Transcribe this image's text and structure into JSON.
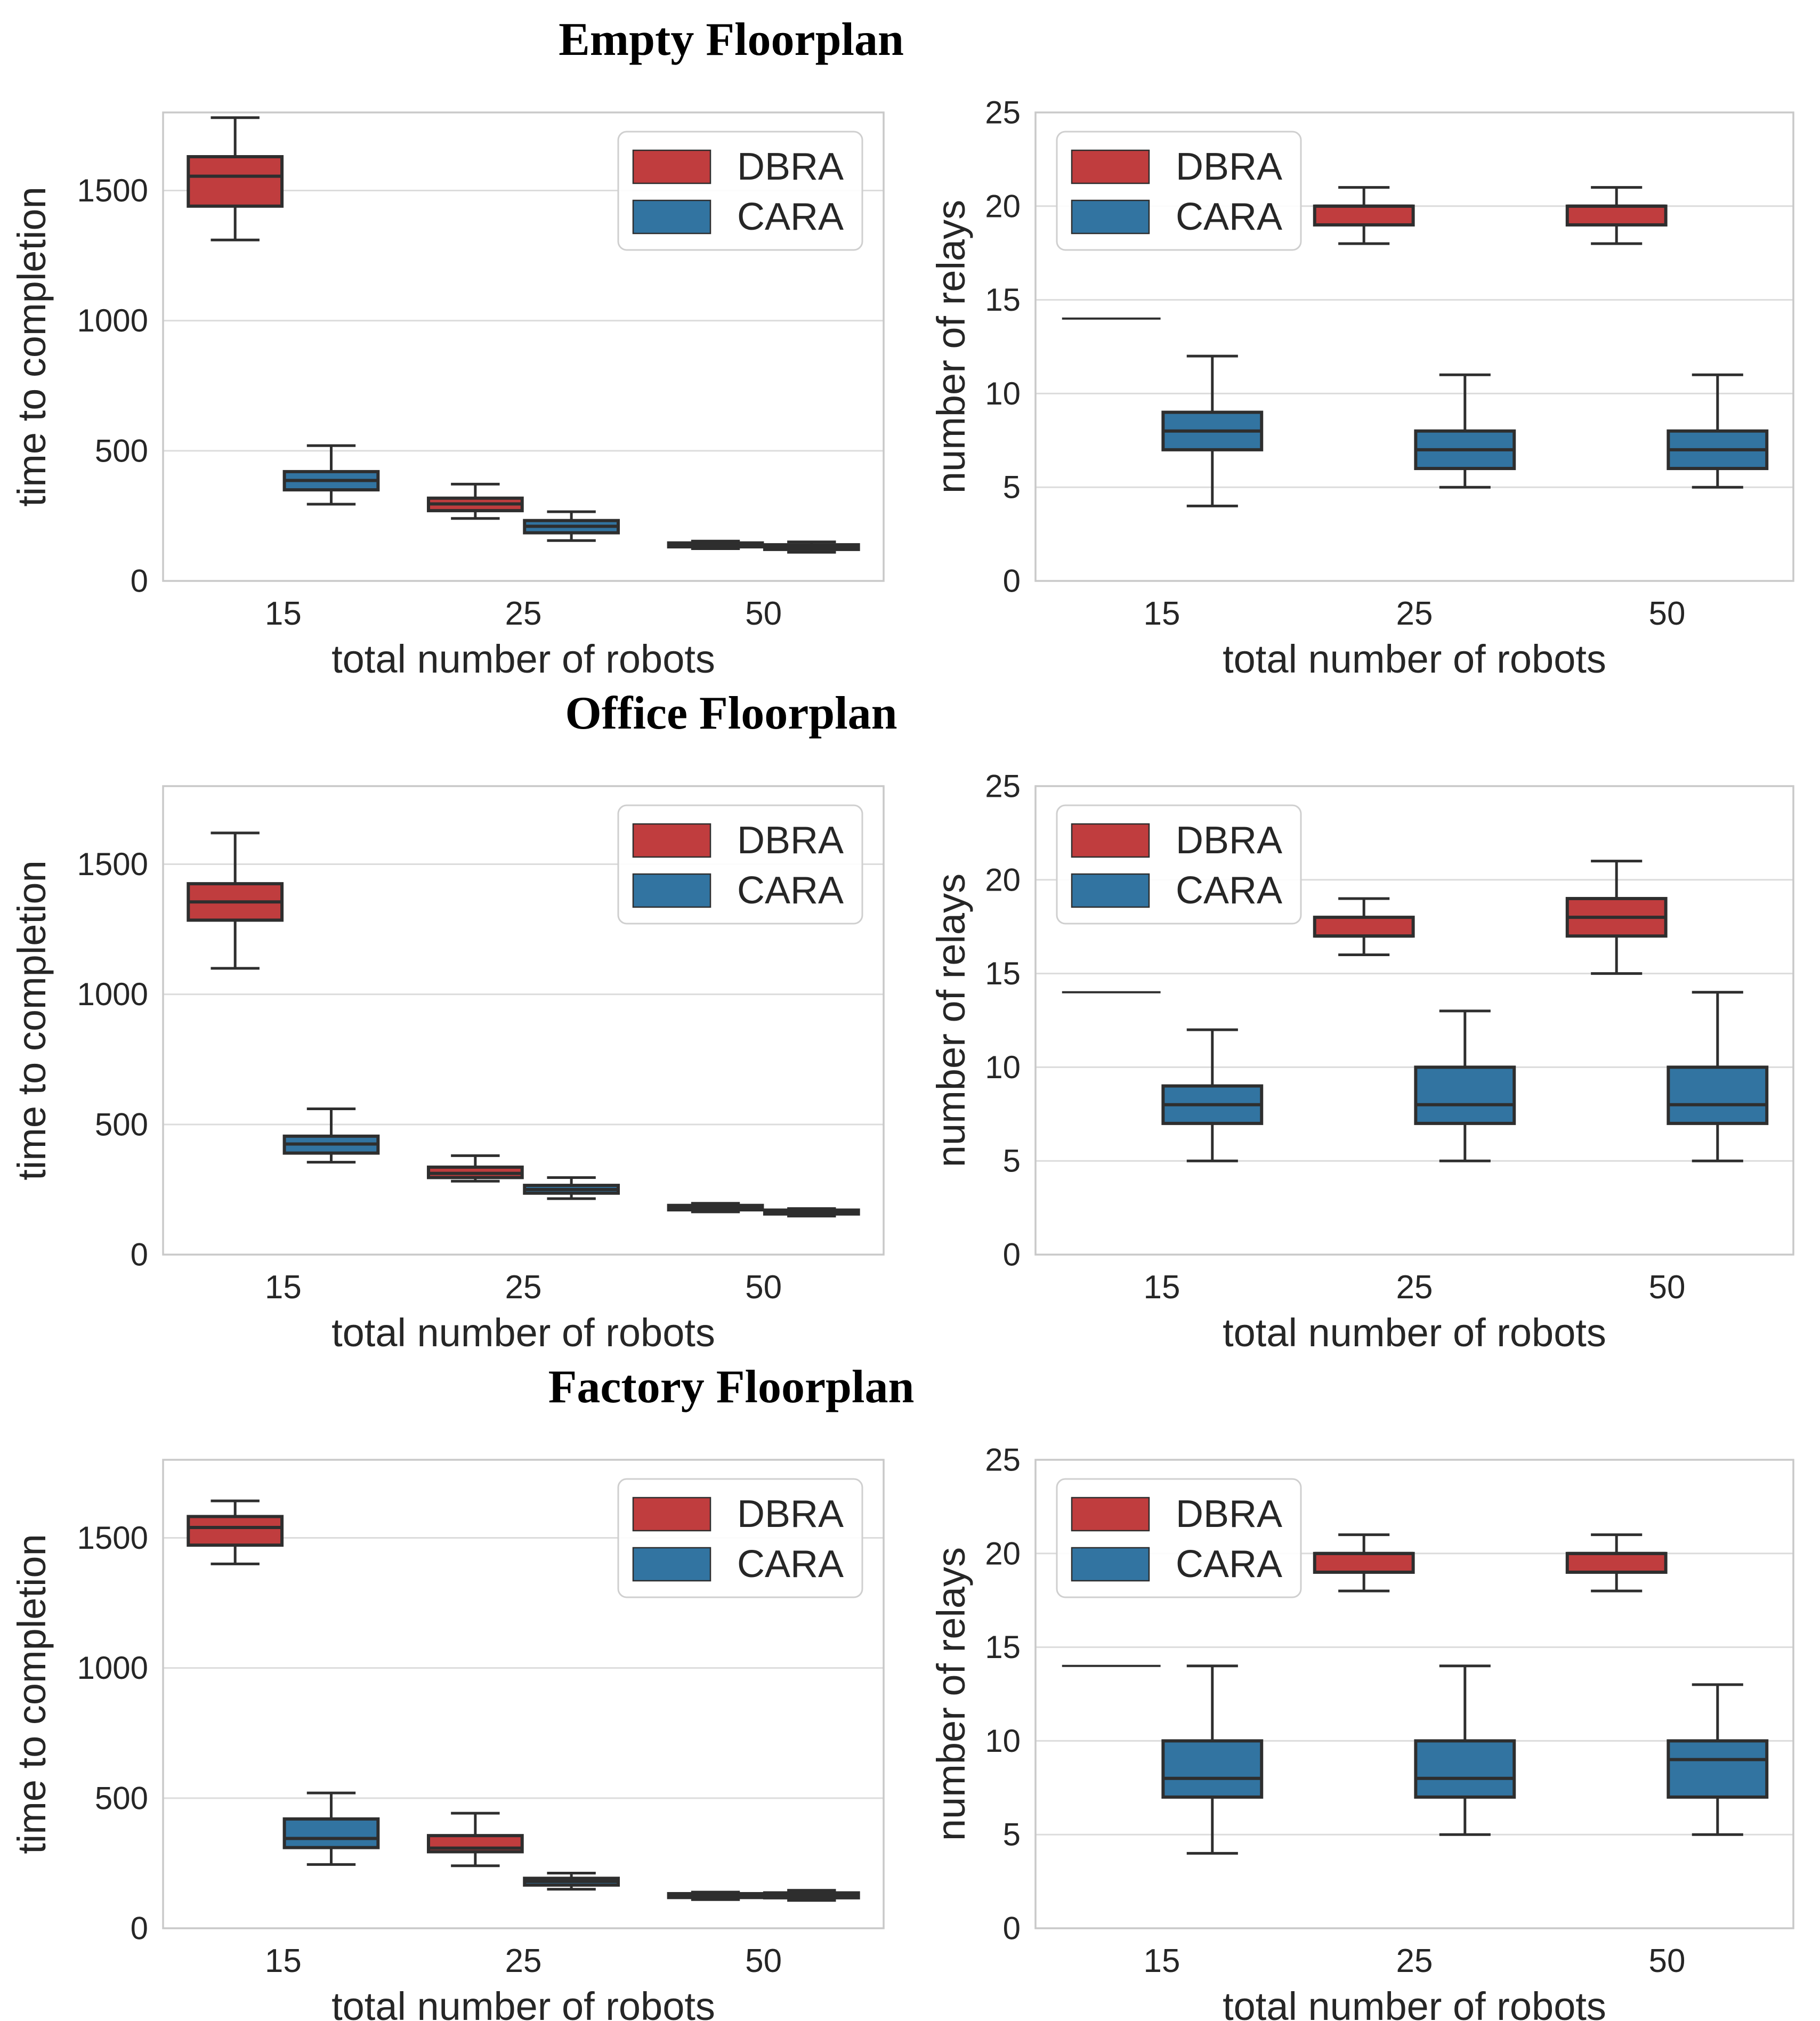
{
  "page": {
    "background": "#ffffff"
  },
  "palette": {
    "dbra": "#c03d3e",
    "cara": "#3274a1",
    "box_edge": "#2e2e2e",
    "grid": "#dcdcdc",
    "spine": "#c9c9c9",
    "text": "#262626",
    "legend_border": "#cfcfcf",
    "title_color": "#000000"
  },
  "legend": {
    "items": [
      {
        "label": "DBRA",
        "color": "#c03d3e"
      },
      {
        "label": "CARA",
        "color": "#3274a1"
      }
    ]
  },
  "rows": [
    {
      "title": "Empty Floorplan",
      "charts": [
        "empty-time",
        "empty-relays"
      ]
    },
    {
      "title": "Office Floorplan",
      "charts": [
        "office-time",
        "office-relays"
      ]
    },
    {
      "title": "Factory Floorplan",
      "charts": [
        "factory-time",
        "factory-relays"
      ]
    }
  ],
  "chart_data": [
    {
      "id": "empty-time",
      "panel": "Empty Floorplan",
      "type": "box",
      "xlabel": "total number of robots",
      "ylabel": "time to completion",
      "categories": [
        "15",
        "25",
        "50"
      ],
      "yticks": [
        0,
        500,
        1000,
        1500
      ],
      "ylim": [
        0,
        1800
      ],
      "grid": true,
      "legend_position": "top-right",
      "series": [
        {
          "name": "DBRA",
          "color": "#c03d3e",
          "boxes": [
            {
              "whislo": 1310,
              "q1": 1440,
              "med": 1555,
              "q3": 1630,
              "whishi": 1780
            },
            {
              "whislo": 240,
              "q1": 270,
              "med": 296,
              "q3": 318,
              "whishi": 372
            },
            {
              "whislo": 124,
              "q1": 131,
              "med": 138,
              "q3": 146,
              "whishi": 153
            }
          ]
        },
        {
          "name": "CARA",
          "color": "#3274a1",
          "boxes": [
            {
              "whislo": 295,
              "q1": 350,
              "med": 386,
              "q3": 420,
              "whishi": 520
            },
            {
              "whislo": 155,
              "q1": 185,
              "med": 210,
              "q3": 232,
              "whishi": 266
            },
            {
              "whislo": 110,
              "q1": 121,
              "med": 129,
              "q3": 139,
              "whishi": 150
            }
          ]
        }
      ]
    },
    {
      "id": "empty-relays",
      "panel": "Empty Floorplan",
      "type": "box",
      "xlabel": "total number of robots",
      "ylabel": "number of relays",
      "categories": [
        "15",
        "25",
        "50"
      ],
      "yticks": [
        0,
        5,
        10,
        15,
        20,
        25
      ],
      "ylim": [
        0,
        25
      ],
      "grid": true,
      "legend_position": "top-left",
      "series": [
        {
          "name": "DBRA",
          "color": "#c03d3e",
          "boxes": [
            {
              "whislo": 14,
              "q1": 14,
              "med": 14,
              "q3": 14,
              "whishi": 14
            },
            {
              "whislo": 18,
              "q1": 19,
              "med": 20,
              "q3": 20,
              "whishi": 21
            },
            {
              "whislo": 18,
              "q1": 19,
              "med": 20,
              "q3": 20,
              "whishi": 21
            }
          ]
        },
        {
          "name": "CARA",
          "color": "#3274a1",
          "boxes": [
            {
              "whislo": 4,
              "q1": 7,
              "med": 8,
              "q3": 9,
              "whishi": 12
            },
            {
              "whislo": 5,
              "q1": 6,
              "med": 7,
              "q3": 8,
              "whishi": 11
            },
            {
              "whislo": 5,
              "q1": 6,
              "med": 7,
              "q3": 8,
              "whishi": 11
            }
          ]
        }
      ]
    },
    {
      "id": "office-time",
      "panel": "Office Floorplan",
      "type": "box",
      "xlabel": "total number of robots",
      "ylabel": "time to completion",
      "categories": [
        "15",
        "25",
        "50"
      ],
      "yticks": [
        0,
        500,
        1000,
        1500
      ],
      "ylim": [
        0,
        1800
      ],
      "grid": true,
      "legend_position": "top-right",
      "series": [
        {
          "name": "DBRA",
          "color": "#c03d3e",
          "boxes": [
            {
              "whislo": 1100,
              "q1": 1285,
              "med": 1355,
              "q3": 1425,
              "whishi": 1620
            },
            {
              "whislo": 282,
              "q1": 296,
              "med": 312,
              "q3": 336,
              "whishi": 380
            },
            {
              "whislo": 164,
              "q1": 172,
              "med": 180,
              "q3": 189,
              "whishi": 197
            }
          ]
        },
        {
          "name": "CARA",
          "color": "#3274a1",
          "boxes": [
            {
              "whislo": 355,
              "q1": 390,
              "med": 425,
              "q3": 455,
              "whishi": 560
            },
            {
              "whislo": 215,
              "q1": 236,
              "med": 250,
              "q3": 266,
              "whishi": 296
            },
            {
              "whislo": 148,
              "q1": 156,
              "med": 163,
              "q3": 171,
              "whishi": 177
            }
          ]
        }
      ]
    },
    {
      "id": "office-relays",
      "panel": "Office Floorplan",
      "type": "box",
      "xlabel": "total number of robots",
      "ylabel": "number of relays",
      "categories": [
        "15",
        "25",
        "50"
      ],
      "yticks": [
        0,
        5,
        10,
        15,
        20,
        25
      ],
      "ylim": [
        0,
        25
      ],
      "grid": true,
      "legend_position": "top-left",
      "series": [
        {
          "name": "DBRA",
          "color": "#c03d3e",
          "boxes": [
            {
              "whislo": 14,
              "q1": 14,
              "med": 14,
              "q3": 14,
              "whishi": 14
            },
            {
              "whislo": 16,
              "q1": 17,
              "med": 17,
              "q3": 18,
              "whishi": 19
            },
            {
              "whislo": 15,
              "q1": 17,
              "med": 18,
              "q3": 19,
              "whishi": 21
            }
          ]
        },
        {
          "name": "CARA",
          "color": "#3274a1",
          "boxes": [
            {
              "whislo": 5,
              "q1": 7,
              "med": 8,
              "q3": 9,
              "whishi": 12
            },
            {
              "whislo": 5,
              "q1": 7,
              "med": 8,
              "q3": 10,
              "whishi": 13
            },
            {
              "whislo": 5,
              "q1": 7,
              "med": 8,
              "q3": 10,
              "whishi": 14
            }
          ]
        }
      ]
    },
    {
      "id": "factory-time",
      "panel": "Factory Floorplan",
      "type": "box",
      "xlabel": "total number of robots",
      "ylabel": "time to completion",
      "categories": [
        "15",
        "25",
        "50"
      ],
      "yticks": [
        0,
        500,
        1000,
        1500
      ],
      "ylim": [
        0,
        1800
      ],
      "grid": true,
      "legend_position": "top-right",
      "series": [
        {
          "name": "DBRA",
          "color": "#c03d3e",
          "boxes": [
            {
              "whislo": 1400,
              "q1": 1472,
              "med": 1540,
              "q3": 1582,
              "whishi": 1642
            },
            {
              "whislo": 240,
              "q1": 294,
              "med": 308,
              "q3": 356,
              "whishi": 442
            },
            {
              "whislo": 110,
              "q1": 118,
              "med": 125,
              "q3": 133,
              "whishi": 139
            }
          ]
        },
        {
          "name": "CARA",
          "color": "#3274a1",
          "boxes": [
            {
              "whislo": 245,
              "q1": 310,
              "med": 345,
              "q3": 420,
              "whishi": 520
            },
            {
              "whislo": 150,
              "q1": 166,
              "med": 180,
              "q3": 192,
              "whishi": 212
            },
            {
              "whislo": 107,
              "q1": 117,
              "med": 126,
              "q3": 136,
              "whishi": 146
            }
          ]
        }
      ]
    },
    {
      "id": "factory-relays",
      "panel": "Factory Floorplan",
      "type": "box",
      "xlabel": "total number of robots",
      "ylabel": "number of relays",
      "categories": [
        "15",
        "25",
        "50"
      ],
      "yticks": [
        0,
        5,
        10,
        15,
        20,
        25
      ],
      "ylim": [
        0,
        25
      ],
      "grid": true,
      "legend_position": "top-left",
      "series": [
        {
          "name": "DBRA",
          "color": "#c03d3e",
          "boxes": [
            {
              "whislo": 14,
              "q1": 14,
              "med": 14,
              "q3": 14,
              "whishi": 14
            },
            {
              "whislo": 18,
              "q1": 19,
              "med": 20,
              "q3": 20,
              "whishi": 21
            },
            {
              "whislo": 18,
              "q1": 19,
              "med": 20,
              "q3": 20,
              "whishi": 21
            }
          ]
        },
        {
          "name": "CARA",
          "color": "#3274a1",
          "boxes": [
            {
              "whislo": 4,
              "q1": 7,
              "med": 8,
              "q3": 10,
              "whishi": 14
            },
            {
              "whislo": 5,
              "q1": 7,
              "med": 8,
              "q3": 10,
              "whishi": 14
            },
            {
              "whislo": 5,
              "q1": 7,
              "med": 9,
              "q3": 10,
              "whishi": 13
            }
          ]
        }
      ]
    }
  ]
}
